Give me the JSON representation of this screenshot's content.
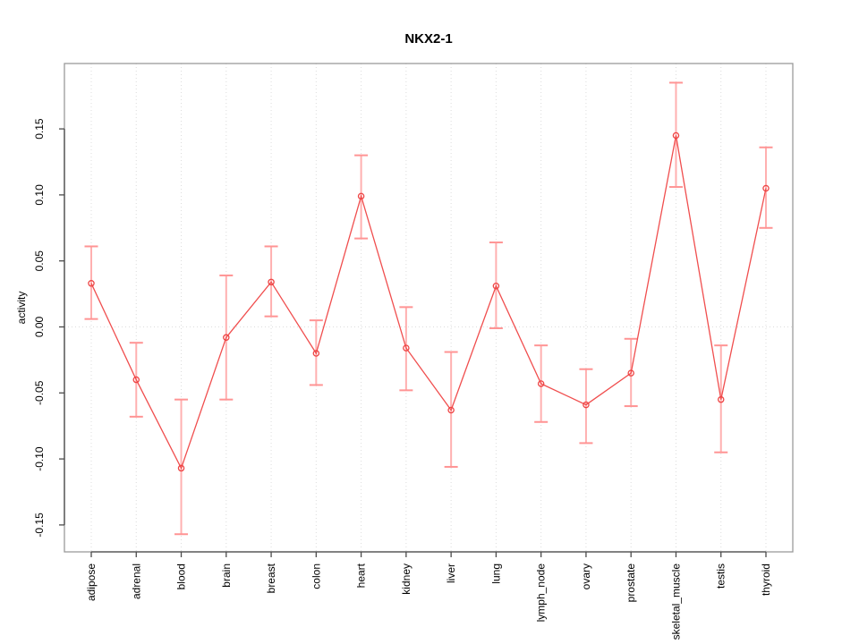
{
  "chart_data": {
    "type": "line",
    "subtype": "point-estimate-with-error-bars",
    "title": "NKX2-1",
    "xlabel": "",
    "ylabel": "activity",
    "categories": [
      "adipose",
      "adrenal",
      "blood",
      "brain",
      "breast",
      "colon",
      "heart",
      "kidney",
      "liver",
      "lung",
      "lymph_node",
      "ovary",
      "prostate",
      "skeletal_muscle",
      "testis",
      "thyroid"
    ],
    "series": [
      {
        "name": "NKX2-1 activity",
        "values": [
          0.033,
          -0.04,
          -0.107,
          -0.008,
          0.034,
          -0.02,
          0.099,
          -0.016,
          -0.063,
          0.031,
          -0.043,
          -0.059,
          -0.035,
          0.145,
          -0.055,
          0.105
        ],
        "ci_upper": [
          0.061,
          -0.012,
          -0.055,
          0.039,
          0.061,
          0.005,
          0.13,
          0.015,
          -0.019,
          0.064,
          -0.014,
          -0.032,
          -0.009,
          0.185,
          -0.014,
          0.136
        ],
        "ci_lower": [
          0.006,
          -0.068,
          -0.157,
          -0.055,
          0.008,
          -0.044,
          0.067,
          -0.048,
          -0.106,
          -0.001,
          -0.072,
          -0.088,
          -0.06,
          0.106,
          -0.095,
          0.075
        ]
      }
    ],
    "y_ticks": [
      "-0.15",
      "-0.10",
      "-0.05",
      "0.00",
      "0.05",
      "0.10",
      "0.15"
    ],
    "ylim": [
      -0.17,
      0.2
    ],
    "grid": {
      "vertical_dotted_at_categories": true,
      "horizontal_dotted_at_zero": true
    },
    "legend": "none",
    "marker": "open-circle",
    "x_tick_label_rotation_deg": 90,
    "y_tick_label_rotation_deg": 90,
    "colors": {
      "line": "#f04e4e",
      "marker": "#ee4444",
      "error_bar": "#ffb0b0",
      "error_cap": "#ff9494",
      "grid": "#dcdcdc",
      "zero_line": "#dcdcdc",
      "box": "#9a9a9a",
      "axis": "#4a4a4a",
      "text": "#000000",
      "background": "#ffffff"
    }
  }
}
